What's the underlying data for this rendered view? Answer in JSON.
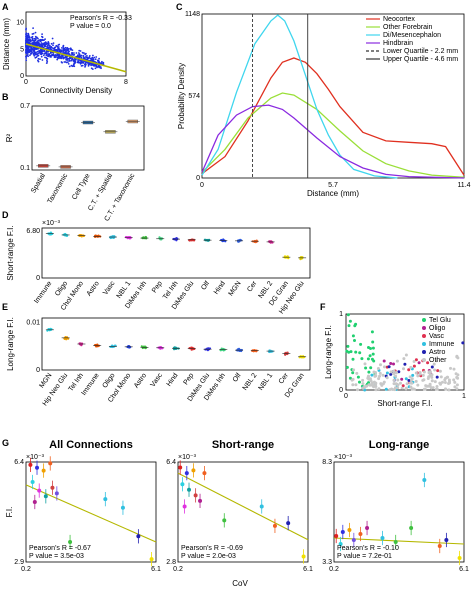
{
  "panels": [
    {
      "id": "A",
      "letter": "A"
    },
    {
      "id": "B",
      "letter": "B"
    },
    {
      "id": "C",
      "letter": "C"
    },
    {
      "id": "D",
      "letter": "D"
    },
    {
      "id": "E",
      "letter": "E"
    },
    {
      "id": "F",
      "letter": "F"
    },
    {
      "id": "G",
      "letter": "G"
    }
  ],
  "chart_data": [
    {
      "id": "A",
      "type": "scatter",
      "xlabel": "Connectivity Density",
      "ylabel": "Distance (mm)",
      "xlim": [
        0,
        8
      ],
      "ylim": [
        0,
        12
      ],
      "xticks": [
        "0",
        "8"
      ],
      "yticks": [
        "0",
        "5",
        "10"
      ],
      "annotation": [
        "Pearson's R = -0.33",
        "P value = 0.0"
      ],
      "point_color": "#1f2fe0",
      "fit_color": "#b5b800",
      "fit_line": {
        "x": [
          0,
          8
        ],
        "y": [
          6,
          0.8
        ]
      }
    },
    {
      "id": "B",
      "type": "box",
      "ylabel": "R²",
      "ylim": [
        0.08,
        0.7
      ],
      "yticks": [
        "0.1",
        "0.7"
      ],
      "categories": [
        "Spatial",
        "Taxonomic",
        "Cell Type",
        "C.T. + Spatial",
        "C.T. + Taxonomic"
      ],
      "values": [
        0.12,
        0.11,
        0.54,
        0.45,
        0.55
      ],
      "colors": [
        "#d0453a",
        "#c86a4a",
        "#2a6aa0",
        "#b9a85a",
        "#d79a6a"
      ]
    },
    {
      "id": "C",
      "type": "line",
      "xlabel": "Distance (mm)",
      "ylabel": "Probability Density",
      "xlim": [
        0,
        11.4
      ],
      "ylim": [
        0,
        1148
      ],
      "xticks": [
        "0",
        "5.7",
        "11.4"
      ],
      "yticks": [
        "0",
        "574",
        "1148"
      ],
      "grid": false,
      "legend_position": "top-right",
      "series": [
        {
          "name": "Neocortex",
          "color": "#e03020",
          "x": [
            0,
            1,
            2,
            3,
            3.5,
            4,
            4.5,
            5,
            5.5,
            6,
            7,
            8,
            9,
            10,
            10.6,
            11,
            11.4
          ],
          "y": [
            30,
            150,
            400,
            700,
            810,
            840,
            810,
            730,
            620,
            500,
            320,
            260,
            250,
            240,
            220,
            120,
            20
          ]
        },
        {
          "name": "Other Forebrain",
          "color": "#9adf38",
          "x": [
            0,
            1,
            2,
            3,
            3.5,
            4,
            5,
            6,
            7,
            8,
            9,
            10,
            11.4
          ],
          "y": [
            40,
            200,
            420,
            560,
            595,
            580,
            480,
            330,
            190,
            100,
            50,
            20,
            5
          ]
        },
        {
          "name": "Di/Mesencephalon",
          "color": "#3fd6ee",
          "x": [
            0,
            0.7,
            1.5,
            2.3,
            3,
            3.3,
            3.6,
            4,
            4.5,
            5,
            5.5,
            6,
            6.6,
            7.5,
            8.5
          ],
          "y": [
            20,
            200,
            600,
            940,
            1100,
            1140,
            1100,
            960,
            720,
            480,
            300,
            160,
            60,
            15,
            0
          ]
        },
        {
          "name": "Hindbrain",
          "color": "#8a2ae0",
          "x": [
            0,
            0.7,
            1.5,
            2.2,
            2.9,
            3.5,
            4,
            5,
            6,
            7,
            8,
            9,
            11.4
          ],
          "y": [
            40,
            300,
            440,
            500,
            510,
            480,
            420,
            280,
            150,
            70,
            25,
            10,
            0
          ]
        },
        {
          "name": "Lower Quartile - 2.2 mm",
          "color": "#333333",
          "vline": 2.2,
          "dash": true
        },
        {
          "name": "Upper Quartile - 4.6 mm",
          "color": "#333333",
          "vline": 4.6,
          "dash": false
        }
      ]
    },
    {
      "id": "D",
      "type": "scatter",
      "ylabel": "Short-range F.I.",
      "yscale_label": "×10⁻³",
      "ylim": [
        0,
        7.2
      ],
      "yticks": [
        "0",
        "6.80"
      ],
      "categories": [
        "Immune",
        "Oligo",
        "Chol Mono",
        "Astro",
        "Vasc",
        "NBL 1",
        "DiMes Inh",
        "Pep",
        "Tel Inh",
        "DiMes Glu",
        "Olf",
        "Hind",
        "MGN",
        "Cer",
        "NBL 2",
        "DG Gran",
        "Hip Neo Glu"
      ],
      "values": [
        6.4,
        6.2,
        6.1,
        6.0,
        5.9,
        5.8,
        5.75,
        5.65,
        5.6,
        5.5,
        5.45,
        5.4,
        5.35,
        5.3,
        5.2,
        3.0,
        2.9
      ],
      "colors": [
        "#2ad0e0",
        "#2ad0e0",
        "#f0a000",
        "#e05000",
        "#30c0e0",
        "#e030e0",
        "#40c040",
        "#40d080",
        "#3030e0",
        "#e03030",
        "#10a0a0",
        "#2040e0",
        "#3060e0",
        "#f06020",
        "#d02090",
        "#f0e000",
        "#e0d000"
      ]
    },
    {
      "id": "E",
      "type": "scatter",
      "ylabel": "Long-range F.I.",
      "ylim": [
        0,
        0.011
      ],
      "yticks": [
        "0",
        "0.01"
      ],
      "categories": [
        "MGN",
        "Hip Neo Glu",
        "Tel Inh",
        "Immune",
        "Oligo",
        "Chol Mono",
        "Astro",
        "Vasc",
        "Hind",
        "Pep",
        "DiMes Glu",
        "DiMes Inh",
        "Olf",
        "NBL 2",
        "NBL 1",
        "Cer",
        "DG Gran"
      ],
      "values": [
        0.0085,
        0.0068,
        0.0055,
        0.0052,
        0.005,
        0.0049,
        0.0048,
        0.0047,
        0.0046,
        0.0045,
        0.0044,
        0.0043,
        0.0042,
        0.0041,
        0.004,
        0.0035,
        0.0028
      ],
      "colors": [
        "#2ad0e0",
        "#f0a000",
        "#d02090",
        "#e05000",
        "#30c0e0",
        "#2040e0",
        "#40c040",
        "#e030e0",
        "#10a0a0",
        "#e03030",
        "#3030e0",
        "#40d080",
        "#3060e0",
        "#f06020",
        "#30c0e0",
        "#d04040",
        "#f0e000"
      ]
    },
    {
      "id": "F",
      "type": "scatter",
      "xlabel": "Short-range F.I.",
      "ylabel": "Long-range F.I.",
      "xlim": [
        0,
        1
      ],
      "ylim": [
        0,
        1
      ],
      "xticks": [
        "0",
        "1"
      ],
      "yticks": [
        "0",
        "1"
      ],
      "legend_position": "top-right",
      "legend": [
        {
          "name": "Tel Glu",
          "color": "#20d070"
        },
        {
          "name": "Oligo",
          "color": "#b02090"
        },
        {
          "name": "Vasc",
          "color": "#e03050"
        },
        {
          "name": "Immune",
          "color": "#30c0e0"
        },
        {
          "name": "Astro",
          "color": "#2020b0"
        },
        {
          "name": "Other",
          "color": "#c8c8c8"
        }
      ]
    },
    {
      "id": "G1",
      "type": "scatter",
      "title": "All Connections",
      "ylabel": "F.I.",
      "yscale_label": "×10⁻³",
      "xlim": [
        0.2,
        6.1
      ],
      "ylim": [
        2.9,
        6.4
      ],
      "xticks": [
        "0.2",
        "6.1"
      ],
      "yticks": [
        "2.9",
        "6.4"
      ],
      "annotation": [
        "Pearson's R = -0.67",
        "P value = 3.5e-03"
      ],
      "fit_line": {
        "x": [
          0.2,
          6.1
        ],
        "y": [
          5.6,
          3.6
        ]
      },
      "points": [
        {
          "x": 0.4,
          "y": 6.3,
          "color": "#e02020"
        },
        {
          "x": 0.7,
          "y": 6.2,
          "color": "#3030e0"
        },
        {
          "x": 1.0,
          "y": 6.1,
          "color": "#f0a000"
        },
        {
          "x": 1.3,
          "y": 6.35,
          "color": "#f06020"
        },
        {
          "x": 0.5,
          "y": 5.7,
          "color": "#2ad0e0"
        },
        {
          "x": 0.8,
          "y": 5.4,
          "color": "#e030e0"
        },
        {
          "x": 1.1,
          "y": 5.2,
          "color": "#10a0a0"
        },
        {
          "x": 0.6,
          "y": 5.0,
          "color": "#b02090"
        },
        {
          "x": 1.4,
          "y": 5.5,
          "color": "#d04040"
        },
        {
          "x": 1.6,
          "y": 5.3,
          "color": "#7050e0"
        },
        {
          "x": 2.2,
          "y": 3.6,
          "color": "#40c040"
        },
        {
          "x": 3.8,
          "y": 5.1,
          "color": "#30c0e0"
        },
        {
          "x": 4.6,
          "y": 4.8,
          "color": "#30c0e0"
        },
        {
          "x": 5.3,
          "y": 3.8,
          "color": "#2020b0"
        },
        {
          "x": 5.9,
          "y": 3.0,
          "color": "#f0e000"
        }
      ]
    },
    {
      "id": "G2",
      "type": "scatter",
      "title": "Short-range",
      "yscale_label": "×10⁻³",
      "xlim": [
        0.2,
        6.1
      ],
      "ylim": [
        2.8,
        6.4
      ],
      "xticks": [
        "0.2",
        "6.1"
      ],
      "yticks": [
        "2.8",
        "6.4"
      ],
      "annotation": [
        "Pearson's R = -0.69",
        "P value = 2.0e-03"
      ],
      "fit_line": {
        "x": [
          0.2,
          6.1
        ],
        "y": [
          6.0,
          3.6
        ]
      },
      "points": [
        {
          "x": 0.3,
          "y": 6.2,
          "color": "#e02020"
        },
        {
          "x": 0.6,
          "y": 6.0,
          "color": "#3030e0"
        },
        {
          "x": 0.9,
          "y": 6.1,
          "color": "#f0a000"
        },
        {
          "x": 1.4,
          "y": 6.0,
          "color": "#f06020"
        },
        {
          "x": 0.4,
          "y": 5.6,
          "color": "#2ad0e0"
        },
        {
          "x": 0.7,
          "y": 5.4,
          "color": "#10a0a0"
        },
        {
          "x": 1.0,
          "y": 5.2,
          "color": "#d04040"
        },
        {
          "x": 0.5,
          "y": 4.8,
          "color": "#e030e0"
        },
        {
          "x": 1.2,
          "y": 5.0,
          "color": "#b02090"
        },
        {
          "x": 2.3,
          "y": 4.3,
          "color": "#40c040"
        },
        {
          "x": 4.0,
          "y": 4.8,
          "color": "#30c0e0"
        },
        {
          "x": 4.6,
          "y": 4.1,
          "color": "#f06020"
        },
        {
          "x": 5.2,
          "y": 4.2,
          "color": "#2020b0"
        },
        {
          "x": 5.9,
          "y": 3.0,
          "color": "#f0e000"
        }
      ]
    },
    {
      "id": "G3",
      "type": "scatter",
      "title": "Long-range",
      "yscale_label": "×10⁻³",
      "xlim": [
        0.2,
        6.1
      ],
      "ylim": [
        3.3,
        8.3
      ],
      "xticks": [
        "0.2",
        "6.1"
      ],
      "yticks": [
        "3.3",
        "8.3"
      ],
      "annotation": [
        "Pearson's R = -0.10",
        "P value = 7.2e-01"
      ],
      "fit_line": {
        "x": [
          0.2,
          6.1
        ],
        "y": [
          4.5,
          4.2
        ]
      },
      "points": [
        {
          "x": 0.3,
          "y": 4.6,
          "color": "#e02020"
        },
        {
          "x": 0.6,
          "y": 4.8,
          "color": "#3030e0"
        },
        {
          "x": 0.9,
          "y": 4.9,
          "color": "#f0a000"
        },
        {
          "x": 1.4,
          "y": 4.7,
          "color": "#f06020"
        },
        {
          "x": 0.5,
          "y": 4.2,
          "color": "#2ad0e0"
        },
        {
          "x": 1.1,
          "y": 4.4,
          "color": "#7050e0"
        },
        {
          "x": 1.7,
          "y": 5.0,
          "color": "#b02090"
        },
        {
          "x": 2.4,
          "y": 4.5,
          "color": "#30c0e0"
        },
        {
          "x": 3.0,
          "y": 4.3,
          "color": "#40c040"
        },
        {
          "x": 3.7,
          "y": 5.0,
          "color": "#40c040"
        },
        {
          "x": 4.3,
          "y": 7.4,
          "color": "#30c0e0"
        },
        {
          "x": 5.0,
          "y": 4.1,
          "color": "#f06020"
        },
        {
          "x": 5.3,
          "y": 4.4,
          "color": "#2020b0"
        },
        {
          "x": 5.9,
          "y": 3.5,
          "color": "#f0e000"
        }
      ]
    }
  ],
  "g_shared_xlabel": "CoV"
}
